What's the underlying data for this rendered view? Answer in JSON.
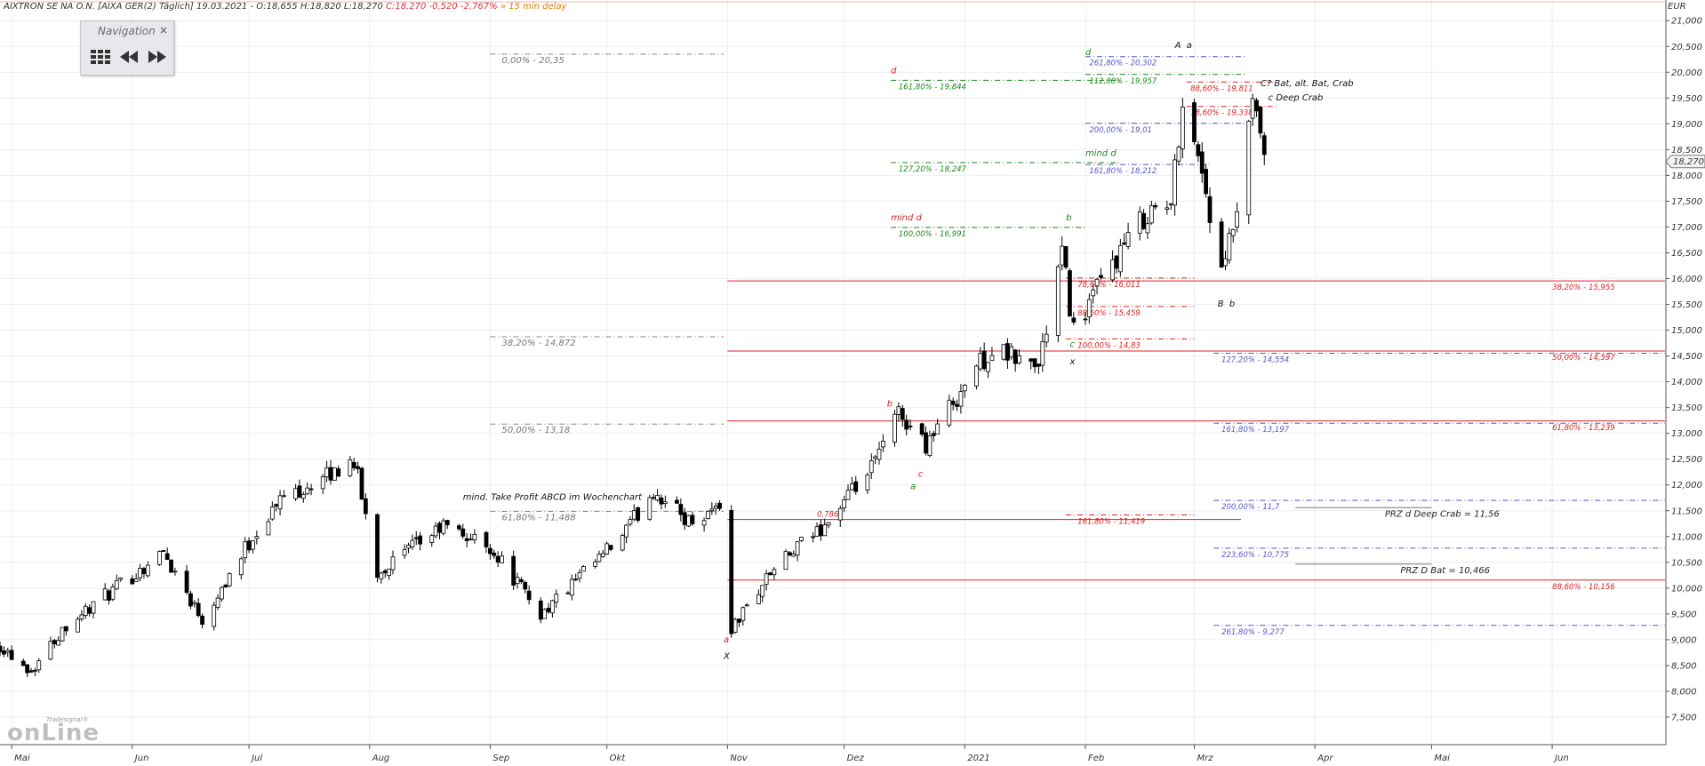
{
  "header": {
    "name": "AIXTRON SE NA O.N. [AIXA GER(2) Täglich] 19.03.2021 - ",
    "ohlc": "O:18,655 H:18,820 L:18,270",
    "change": "C:18,270 -0,520 -2,767%",
    "delay": "» 15 min delay"
  },
  "navigation": {
    "title": "Navigation",
    "close": "×"
  },
  "logo": {
    "tradesignal": "Tradesignal®",
    "online": "onLine"
  },
  "colors": {
    "up": "#ffffff",
    "down": "#000000",
    "grid": "#eeeeee",
    "red": "#e02020",
    "green": "#1a8a1a",
    "blue": "#5454c8",
    "gray": "#777777"
  },
  "chart_data": {
    "type": "candlestick",
    "currency": "EUR",
    "last_price": "18,270",
    "ylim": [
      7.0,
      21.4
    ],
    "y_ticks": [
      {
        "v": 21.0,
        "t": "21,000"
      },
      {
        "v": 20.5,
        "t": "20,500"
      },
      {
        "v": 20.0,
        "t": "20,000"
      },
      {
        "v": 19.5,
        "t": "19,500"
      },
      {
        "v": 19.0,
        "t": "19,000"
      },
      {
        "v": 18.5,
        "t": "18,500"
      },
      {
        "v": 18.0,
        "t": "18,000"
      },
      {
        "v": 17.5,
        "t": "17,500"
      },
      {
        "v": 17.0,
        "t": "17,000"
      },
      {
        "v": 16.5,
        "t": "16,500"
      },
      {
        "v": 16.0,
        "t": "16,000"
      },
      {
        "v": 15.5,
        "t": "15,500"
      },
      {
        "v": 15.0,
        "t": "15,000"
      },
      {
        "v": 14.5,
        "t": "14,500"
      },
      {
        "v": 14.0,
        "t": "14,000"
      },
      {
        "v": 13.5,
        "t": "13,500"
      },
      {
        "v": 13.0,
        "t": "13,000"
      },
      {
        "v": 12.5,
        "t": "12,500"
      },
      {
        "v": 12.0,
        "t": "12,000"
      },
      {
        "v": 11.5,
        "t": "11,500"
      },
      {
        "v": 11.0,
        "t": "11,000"
      },
      {
        "v": 10.5,
        "t": "10,500"
      },
      {
        "v": 10.0,
        "t": "10,000"
      },
      {
        "v": 9.5,
        "t": "9,500"
      },
      {
        "v": 9.0,
        "t": "9,000"
      },
      {
        "v": 8.5,
        "t": "8,500"
      },
      {
        "v": 8.0,
        "t": "8,000"
      },
      {
        "v": 7.5,
        "t": "7,500"
      }
    ],
    "x_start": "2020-04-28",
    "x_end": "2021-06-30",
    "x_ticks": [
      {
        "date": "2020-05-01",
        "t": "Mai"
      },
      {
        "date": "2020-06-01",
        "t": "Jun"
      },
      {
        "date": "2020-07-01",
        "t": "Jul"
      },
      {
        "date": "2020-08-01",
        "t": "Aug"
      },
      {
        "date": "2020-09-01",
        "t": "Sep"
      },
      {
        "date": "2020-10-01",
        "t": "Okt"
      },
      {
        "date": "2020-11-01",
        "t": "Nov"
      },
      {
        "date": "2020-12-01",
        "t": "Dez"
      },
      {
        "date": "2021-01-01",
        "t": "2021"
      },
      {
        "date": "2021-02-01",
        "t": "Feb"
      },
      {
        "date": "2021-03-01",
        "t": "Mrz"
      },
      {
        "date": "2021-04-01",
        "t": "Apr"
      },
      {
        "date": "2021-05-01",
        "t": "Mai"
      },
      {
        "date": "2021-06-01",
        "t": "Jun"
      }
    ],
    "anchors": [
      {
        "date": "2020-04-28",
        "v": 8.9
      },
      {
        "date": "2020-05-06",
        "v": 8.4
      },
      {
        "date": "2020-05-15",
        "v": 9.3
      },
      {
        "date": "2020-05-28",
        "v": 10.0
      },
      {
        "date": "2020-06-09",
        "v": 10.7
      },
      {
        "date": "2020-06-19",
        "v": 9.4
      },
      {
        "date": "2020-07-02",
        "v": 11.0
      },
      {
        "date": "2020-07-10",
        "v": 11.8
      },
      {
        "date": "2020-07-20",
        "v": 12.1
      },
      {
        "date": "2020-07-28",
        "v": 12.5
      },
      {
        "date": "2020-08-03",
        "v": 10.3
      },
      {
        "date": "2020-08-20",
        "v": 11.2
      },
      {
        "date": "2020-09-01",
        "v": 10.8
      },
      {
        "date": "2020-09-14",
        "v": 9.5
      },
      {
        "date": "2020-09-24",
        "v": 10.2
      },
      {
        "date": "2020-10-05",
        "v": 11.0
      },
      {
        "date": "2020-10-13",
        "v": 11.9
      },
      {
        "date": "2020-10-22",
        "v": 11.3
      },
      {
        "date": "2020-10-30",
        "v": 11.6
      },
      {
        "date": "2020-11-02",
        "v": 9.2
      },
      {
        "date": "2020-11-12",
        "v": 10.3
      },
      {
        "date": "2020-11-27",
        "v": 11.3
      },
      {
        "date": "2020-12-08",
        "v": 12.3
      },
      {
        "date": "2020-12-15",
        "v": 13.4
      },
      {
        "date": "2020-12-22",
        "v": 12.8
      },
      {
        "date": "2021-01-04",
        "v": 14.3
      },
      {
        "date": "2021-01-08",
        "v": 14.6
      },
      {
        "date": "2021-01-20",
        "v": 14.3
      },
      {
        "date": "2021-01-26",
        "v": 16.5
      },
      {
        "date": "2021-01-29",
        "v": 15.0
      },
      {
        "date": "2021-02-08",
        "v": 16.3
      },
      {
        "date": "2021-02-17",
        "v": 17.3
      },
      {
        "date": "2021-02-23",
        "v": 17.4
      },
      {
        "date": "2021-02-26",
        "v": 19.5
      },
      {
        "date": "2021-03-03",
        "v": 18.1
      },
      {
        "date": "2021-03-08",
        "v": 16.0
      },
      {
        "date": "2021-03-12",
        "v": 17.3
      },
      {
        "date": "2021-03-16",
        "v": 19.3
      },
      {
        "date": "2021-03-18",
        "v": 18.8
      },
      {
        "date": "2021-03-19",
        "v": 18.27
      }
    ],
    "horizontal_lines": [
      {
        "v": 20.35,
        "from": "2020-09-01",
        "to": "2020-10-31",
        "style": "gray-dash",
        "label": "0,00% - 20,35",
        "label_at": "2020-09-04",
        "label_side": "below"
      },
      {
        "v": 14.872,
        "from": "2020-09-01",
        "to": "2020-10-31",
        "style": "gray-dash",
        "label": "38,20% - 14,872",
        "label_at": "2020-09-04",
        "label_side": "below"
      },
      {
        "v": 13.18,
        "from": "2020-09-01",
        "to": "2020-10-31",
        "style": "gray-dash",
        "label": "50,00% - 13,18",
        "label_at": "2020-09-04",
        "label_side": "below"
      },
      {
        "v": 11.488,
        "from": "2020-09-01",
        "to": "2020-10-31",
        "style": "gray-dash",
        "label": "61,80% - 11,488",
        "label_at": "2020-09-04",
        "label_side": "below"
      },
      {
        "v": 19.844,
        "from": "2020-12-13",
        "to": "2021-02-10",
        "style": "green-dash",
        "label": "161,80% - 19,844",
        "label_at": "2020-12-15",
        "label_side": "below"
      },
      {
        "v": 18.247,
        "from": "2020-12-13",
        "to": "2021-02-10",
        "style": "green-dash",
        "label": "127,20% - 18,247",
        "label_at": "2020-12-15",
        "label_side": "below"
      },
      {
        "v": 16.991,
        "from": "2020-12-13",
        "to": "2021-02-01",
        "style": "green-dash",
        "label": "100,00% - 16,991",
        "label_at": "2020-12-15",
        "label_side": "below"
      },
      {
        "v": 19.957,
        "from": "2021-02-01",
        "to": "2021-03-14",
        "style": "green-dash",
        "label": "112,80% - 19,957",
        "label_at": "2021-02-02",
        "label_side": "below"
      },
      {
        "v": 20.302,
        "from": "2021-02-01",
        "to": "2021-03-14",
        "style": "blue-dash",
        "label": "261,80% - 20,302",
        "label_at": "2021-02-02",
        "label_side": "below"
      },
      {
        "v": 19.01,
        "from": "2021-02-01",
        "to": "2021-03-14",
        "style": "blue-dash",
        "label": "200,00% - 19,01",
        "label_at": "2021-02-02",
        "label_side": "below"
      },
      {
        "v": 18.212,
        "from": "2021-02-01",
        "to": "2021-03-05",
        "style": "blue-dash",
        "label": "161,80% - 18,212",
        "label_at": "2021-02-02",
        "label_side": "below"
      },
      {
        "v": 19.811,
        "from": "2021-02-27",
        "to": "2021-03-22",
        "style": "red-dash",
        "label": "88,60% - 19,811",
        "label_at": "2021-02-28",
        "label_side": "below"
      },
      {
        "v": 19.338,
        "from": "2021-02-27",
        "to": "2021-03-22",
        "style": "red-dash",
        "label": "78,60% - 19,338",
        "label_at": "2021-02-28",
        "label_side": "below"
      },
      {
        "v": 16.011,
        "from": "2021-01-27",
        "to": "2021-03-01",
        "style": "red-dash",
        "label": "78,60% - 16,011",
        "label_at": "2021-01-30",
        "label_side": "below"
      },
      {
        "v": 15.459,
        "from": "2021-01-27",
        "to": "2021-03-01",
        "style": "red-dash",
        "label": "88,60% - 15,459",
        "label_at": "2021-01-30",
        "label_side": "below"
      },
      {
        "v": 14.83,
        "from": "2021-01-27",
        "to": "2021-03-01",
        "style": "red-dash",
        "label": "100,00% - 14,83",
        "label_at": "2021-01-30",
        "label_side": "below"
      },
      {
        "v": 11.419,
        "from": "2021-01-27",
        "to": "2021-03-01",
        "style": "red-dash",
        "label": "161,80% - 11,419",
        "label_at": "2021-01-30",
        "label_side": "below"
      },
      {
        "v": 15.955,
        "from": "2020-11-01",
        "to": "2021-06-30",
        "style": "red-solid",
        "label": "38,20% - 15,955",
        "label_at": "2021-06-01",
        "label_side": "below"
      },
      {
        "v": 14.597,
        "from": "2020-11-01",
        "to": "2021-06-30",
        "style": "red-solid",
        "label": "50,00% - 14,597",
        "label_at": "2021-06-01",
        "label_side": "below"
      },
      {
        "v": 13.239,
        "from": "2020-11-01",
        "to": "2021-06-30",
        "style": "red-solid",
        "label": "61,80% - 13,239",
        "label_at": "2021-06-01",
        "label_side": "below"
      },
      {
        "v": 10.156,
        "from": "2020-11-01",
        "to": "2021-06-30",
        "style": "red-solid",
        "label": "88,60% - 10,156",
        "label_at": "2021-06-01",
        "label_side": "below"
      },
      {
        "v": 11.33,
        "from": "2020-11-01",
        "to": "2021-03-13",
        "style": "red-solid",
        "label": "0,786",
        "label_at": "2020-11-24",
        "label_side": "above"
      },
      {
        "v": 14.554,
        "from": "2021-03-06",
        "to": "2021-06-30",
        "style": "blue-dash",
        "label": "127,20% - 14,554",
        "label_at": "2021-03-08",
        "label_side": "below"
      },
      {
        "v": 13.197,
        "from": "2021-03-06",
        "to": "2021-06-30",
        "style": "blue-dash",
        "label": "161,80% - 13,197",
        "label_at": "2021-03-08",
        "label_side": "below"
      },
      {
        "v": 11.7,
        "from": "2021-03-06",
        "to": "2021-06-30",
        "style": "blue-dash",
        "label": "200,00% - 11,7",
        "label_at": "2021-03-08",
        "label_side": "below"
      },
      {
        "v": 10.775,
        "from": "2021-03-06",
        "to": "2021-06-30",
        "style": "blue-dash",
        "label": "223,60% - 10,775",
        "label_at": "2021-03-08",
        "label_side": "below"
      },
      {
        "v": 9.277,
        "from": "2021-03-06",
        "to": "2021-06-30",
        "style": "blue-dash",
        "label": "261,80% - 9,277",
        "label_at": "2021-03-08",
        "label_side": "below"
      },
      {
        "v": 11.56,
        "from": "2021-03-27",
        "to": "2021-05-01",
        "style": "gray-solid",
        "label": "PRZ d Deep Crab = 11,56",
        "label_at": "2021-04-19",
        "label_side": "below"
      },
      {
        "v": 10.466,
        "from": "2021-03-27",
        "to": "2021-05-01",
        "style": "gray-solid",
        "label": "PRZ D Bat = 10,466",
        "label_at": "2021-04-23",
        "label_side": "below"
      }
    ],
    "annotations": [
      {
        "date": "2020-10-31",
        "v": 8.95,
        "text": "a",
        "color": "red"
      },
      {
        "date": "2020-10-31",
        "v": 8.63,
        "text": "X",
        "color": "black"
      },
      {
        "date": "2020-12-12",
        "v": 13.52,
        "text": "b",
        "color": "red"
      },
      {
        "date": "2020-12-20",
        "v": 12.16,
        "text": "c",
        "color": "red"
      },
      {
        "date": "2020-12-18",
        "v": 11.92,
        "text": "a",
        "color": "green"
      },
      {
        "date": "2021-01-27",
        "v": 17.13,
        "text": "b",
        "color": "green"
      },
      {
        "date": "2021-01-28",
        "v": 14.67,
        "text": "c",
        "color": "green"
      },
      {
        "date": "2021-01-28",
        "v": 14.34,
        "text": "x",
        "color": "black"
      },
      {
        "date": "2021-02-01",
        "v": 20.33,
        "text": "d",
        "color": "green"
      },
      {
        "date": "2021-02-01",
        "v": 18.38,
        "text": "mind d",
        "color": "green"
      },
      {
        "date": "2020-12-13",
        "v": 19.98,
        "text": "d",
        "color": "red"
      },
      {
        "date": "2020-12-13",
        "v": 17.13,
        "text": "mind d",
        "color": "red"
      },
      {
        "date": "2021-02-24",
        "v": 20.47,
        "text": "A",
        "color": "black"
      },
      {
        "date": "2021-02-27",
        "v": 20.47,
        "text": "a",
        "color": "black"
      },
      {
        "date": "2021-03-07",
        "v": 15.46,
        "text": "B",
        "color": "black"
      },
      {
        "date": "2021-03-10",
        "v": 15.46,
        "text": "b",
        "color": "black"
      },
      {
        "date": "2021-03-18",
        "v": 19.73,
        "text": "C? Bat, alt. Bat, Crab",
        "color": "black"
      },
      {
        "date": "2021-03-20",
        "v": 19.45,
        "text": "c Deep Crab",
        "color": "black"
      },
      {
        "date": "2020-08-25",
        "v": 11.71,
        "text": "mind. Take Profit ABCD im Wochenchart",
        "color": "black"
      }
    ]
  }
}
